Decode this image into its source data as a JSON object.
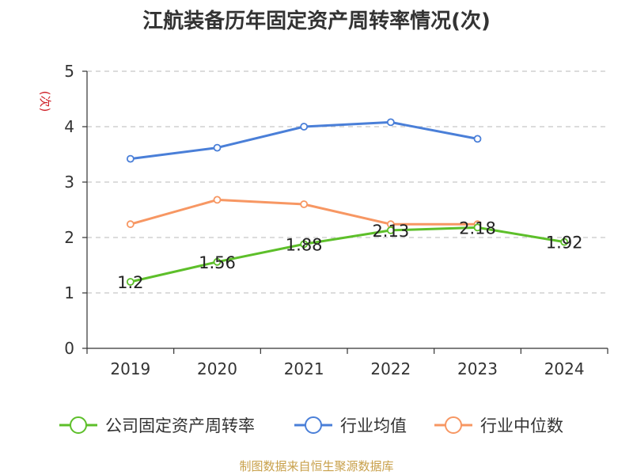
{
  "chart_data": {
    "type": "line",
    "title": "江航装备历年固定资产周转率情况(次)",
    "ylabel": "(次)",
    "x": [
      "2019",
      "2020",
      "2021",
      "2022",
      "2023",
      "2024"
    ],
    "ylim": [
      0,
      5
    ],
    "yticks": [
      0,
      1,
      2,
      3,
      4,
      5
    ],
    "grid": true,
    "legend_position": "bottom",
    "series": [
      {
        "name": "公司固定资产周转率",
        "color": "#5dbf2a",
        "values": [
          1.2,
          1.56,
          1.88,
          2.13,
          2.18,
          1.92
        ],
        "labels": [
          "1.2",
          "1.56",
          "1.88",
          "2.13",
          "2.18",
          "1.92"
        ]
      },
      {
        "name": "行业均值",
        "color": "#4a7fd8",
        "values": [
          3.42,
          3.62,
          4.0,
          4.08,
          3.78,
          null
        ]
      },
      {
        "name": "行业中位数",
        "color": "#f79763",
        "values": [
          2.24,
          2.68,
          2.6,
          2.24,
          2.24,
          null
        ]
      }
    ]
  },
  "source": "制图数据来自恒生聚源数据库"
}
